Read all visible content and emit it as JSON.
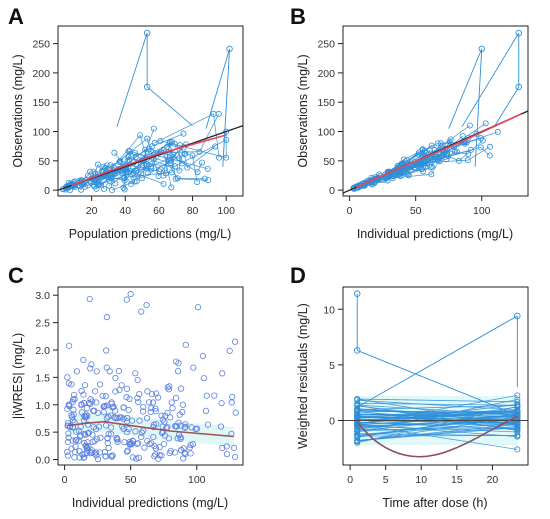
{
  "panels": {
    "A": {
      "letter": "A",
      "xlabel": "Population predictions (mg/L)",
      "ylabel": "Observations (mg/L)"
    },
    "B": {
      "letter": "B",
      "xlabel": "Individual predictions (mg/L)",
      "ylabel": "Observations (mg/L)"
    },
    "C": {
      "letter": "C",
      "xlabel": "Individual predictions (mg/L)",
      "ylabel": "|iWRES| (mg/L)"
    },
    "D": {
      "letter": "D",
      "xlabel": "Time after dose (h)",
      "ylabel": "Weighted residuals (mg/L)"
    }
  },
  "colors": {
    "points": "#2f8fd8",
    "points_c": "#5a7fe0",
    "identity": "#222222",
    "loess": "#e8465c",
    "loess_c": "#a0505a",
    "loess_d": "#8c5060",
    "band": "#c9f2f2"
  },
  "chart_data": [
    {
      "panel": "A",
      "type": "scatter",
      "xlabel": "Population predictions (mg/L)",
      "ylabel": "Observations (mg/L)",
      "xlim": [
        0,
        110
      ],
      "ylim": [
        -10,
        280
      ],
      "xticks": [
        20,
        40,
        60,
        80,
        100
      ],
      "yticks": [
        0,
        50,
        100,
        150,
        200,
        250
      ],
      "connected_by_subject": true,
      "outliers": [
        [
          53,
          268
        ],
        [
          53,
          176
        ],
        [
          102,
          241
        ]
      ],
      "subjects_approx": 50,
      "x_range_points": [
        5,
        100
      ],
      "y_range_points": [
        0,
        130
      ],
      "reference_line": {
        "label": "identity",
        "from": [
          0,
          0
        ],
        "to": [
          110,
          110
        ]
      },
      "smooth_line": [
        [
          8,
          8
        ],
        [
          30,
          32
        ],
        [
          60,
          62
        ],
        [
          100,
          94
        ]
      ]
    },
    {
      "panel": "B",
      "type": "scatter",
      "xlabel": "Individual predictions (mg/L)",
      "ylabel": "Observations (mg/L)",
      "xlim": [
        -5,
        135
      ],
      "ylim": [
        -10,
        280
      ],
      "xticks": [
        0,
        50,
        100
      ],
      "yticks": [
        0,
        50,
        100,
        150,
        200,
        250
      ],
      "connected_by_subject": true,
      "outliers": [
        [
          128,
          268
        ],
        [
          128,
          176
        ],
        [
          100,
          241
        ]
      ],
      "subjects_approx": 50,
      "x_range_points": [
        3,
        130
      ],
      "y_range_points": [
        0,
        130
      ],
      "reference_line": {
        "label": "identity",
        "from": [
          -5,
          -5
        ],
        "to": [
          135,
          135
        ]
      },
      "smooth_line": [
        [
          5,
          5
        ],
        [
          40,
          40
        ],
        [
          80,
          78
        ],
        [
          130,
          130
        ]
      ]
    },
    {
      "panel": "C",
      "type": "scatter",
      "xlabel": "Individual predictions (mg/L)",
      "ylabel": "|iWRES| (mg/L)",
      "xlim": [
        -5,
        135
      ],
      "ylim": [
        -0.1,
        3.15
      ],
      "xticks": [
        0,
        50,
        100
      ],
      "yticks": [
        0.0,
        0.5,
        1.0,
        1.5,
        2.0,
        2.5,
        3.0
      ],
      "outliers": [
        [
          50,
          3.02
        ],
        [
          19,
          2.93
        ],
        [
          62,
          2.82
        ],
        [
          101,
          2.78
        ],
        [
          47,
          2.92
        ],
        [
          129,
          2.15
        ],
        [
          32,
          2.6
        ],
        [
          58,
          2.7
        ]
      ],
      "n_points_approx": 300,
      "smooth_line": [
        [
          3,
          0.62
        ],
        [
          15,
          0.66
        ],
        [
          30,
          0.69
        ],
        [
          50,
          0.62
        ],
        [
          80,
          0.52
        ],
        [
          128,
          0.42
        ]
      ]
    },
    {
      "panel": "D",
      "type": "scatter",
      "xlabel": "Time after dose (h)",
      "ylabel": "Weighted residuals (mg/L)",
      "xlim": [
        -1,
        25
      ],
      "ylim": [
        -4,
        12
      ],
      "xticks": [
        0,
        5,
        10,
        15,
        20
      ],
      "yticks": [
        0,
        5,
        10
      ],
      "sample_times": [
        1,
        23.5
      ],
      "connected_by_subject": true,
      "outliers": [
        [
          1,
          11.4
        ],
        [
          1,
          6.3
        ],
        [
          23.5,
          9.4
        ]
      ],
      "n_subjects_approx": 60,
      "smooth_line": [
        [
          1,
          -0.2
        ],
        [
          4,
          -2.2
        ],
        [
          8,
          -3.3
        ],
        [
          12,
          -3.2
        ],
        [
          16,
          -2.2
        ],
        [
          20,
          -0.8
        ],
        [
          23.5,
          0.4
        ]
      ]
    }
  ]
}
